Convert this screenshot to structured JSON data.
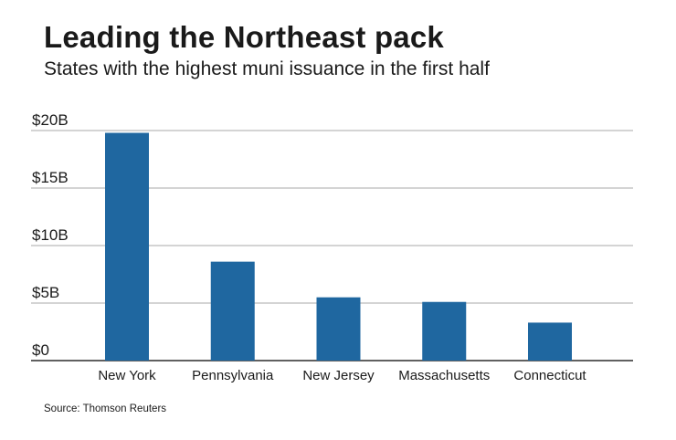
{
  "header": {
    "title": "Leading the Northeast pack",
    "subtitle": "States with the highest muni issuance in the first half"
  },
  "footer": {
    "source": "Source: Thomson Reuters"
  },
  "colors": {
    "bar": "#1f67a0",
    "gridline": "#a9a9a9",
    "baseline": "#000000"
  },
  "chart_data": {
    "type": "bar",
    "title": "Leading the Northeast pack",
    "subtitle": "States with the highest muni issuance in the first half",
    "xlabel": "",
    "ylabel": "",
    "unit": "billions USD",
    "categories": [
      "New York",
      "Pennsylvania",
      "New Jersey",
      "Massachusetts",
      "Connecticut"
    ],
    "values": [
      19.8,
      8.6,
      5.5,
      5.1,
      3.3
    ],
    "ylim": [
      0,
      20
    ],
    "yticks": [
      0,
      5,
      10,
      15,
      20
    ],
    "ytick_labels": [
      "$0",
      "$5B",
      "$10B",
      "$15B",
      "$20B"
    ],
    "grid": true,
    "legend": "none"
  }
}
